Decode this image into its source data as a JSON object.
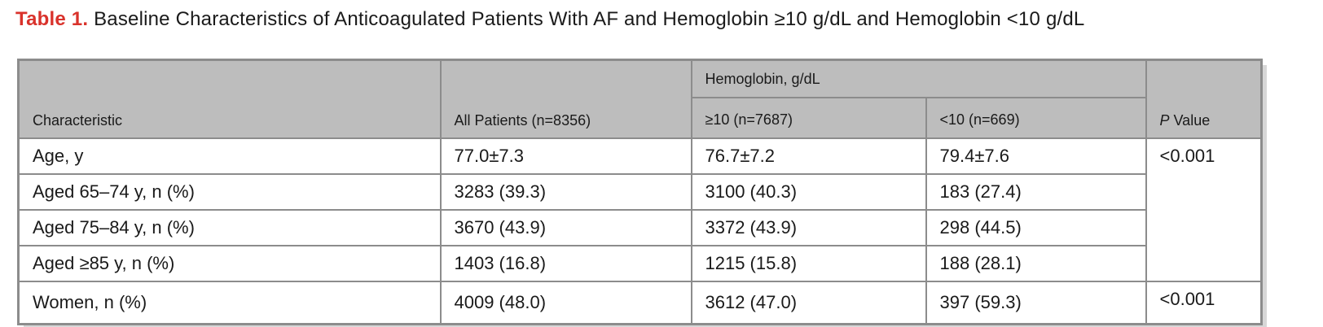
{
  "caption": {
    "label": "Table 1.",
    "text": "Baseline Characteristics of Anticoagulated Patients With AF and Hemoglobin ≥10 g/dL and Hemoglobin <10 g/dL"
  },
  "table": {
    "headers": {
      "characteristic": "Characteristic",
      "all_patients": "All Patients (n=8356)",
      "hemoglobin_group": "Hemoglobin, g/dL",
      "hb_ge10": "≥10 (n=7687)",
      "hb_lt10": "<10 (n=669)",
      "p_value_italic": "P",
      "p_value_rest": " Value"
    },
    "rows": [
      {
        "characteristic": "Age, y",
        "all": "77.0±7.3",
        "ge10": "76.7±7.2",
        "lt10": "79.4±7.6",
        "p": "<0.001"
      },
      {
        "characteristic": "Aged 65–74 y, n (%)",
        "all": "3283 (39.3)",
        "ge10": "3100 (40.3)",
        "lt10": "183 (27.4)"
      },
      {
        "characteristic": "Aged 75–84 y, n (%)",
        "all": "3670 (43.9)",
        "ge10": "3372 (43.9)",
        "lt10": "298 (44.5)"
      },
      {
        "characteristic": "Aged ≥85 y, n (%)",
        "all": "1403 (16.8)",
        "ge10": "1215 (15.8)",
        "lt10": "188 (28.1)"
      },
      {
        "characteristic": "Women, n (%)",
        "all": "4009 (48.0)",
        "ge10": "3612 (47.0)",
        "lt10": "397 (59.3)",
        "p": "<0.001"
      }
    ]
  }
}
